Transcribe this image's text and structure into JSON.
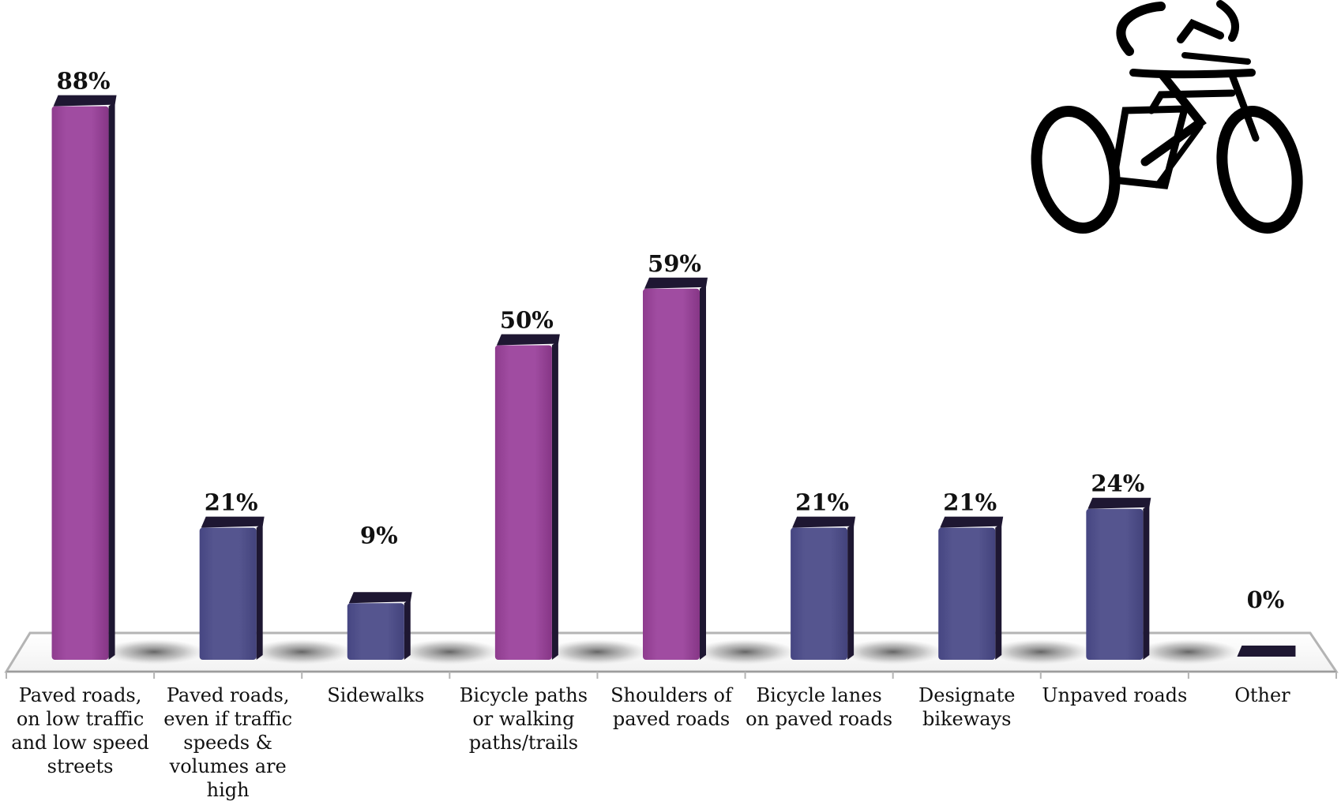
{
  "chart_data": {
    "type": "bar",
    "title": "",
    "xlabel": "",
    "ylabel": "",
    "ylim": [
      0,
      100
    ],
    "grid": false,
    "categories": [
      "Paved roads, on low traffic and low speed streets",
      "Paved roads, even if traffic speeds & volumes are high",
      "Sidewalks",
      "Bicycle paths or walking paths/trails",
      "Shoulders of paved roads",
      "Bicycle lanes on paved roads",
      "Designate bikeways",
      "Unpaved roads",
      "Other"
    ],
    "values": [
      88,
      21,
      9,
      50,
      59,
      21,
      21,
      24,
      0
    ],
    "value_labels": [
      "88%",
      "21%",
      "9%",
      "50%",
      "59%",
      "21%",
      "21%",
      "24%",
      "0%"
    ],
    "highlighted": [
      true,
      false,
      false,
      true,
      true,
      false,
      false,
      false,
      false
    ],
    "colors": {
      "highlight": "#9b479b",
      "normal": "#4f4f8a",
      "top_dark": "#1e1732",
      "floor_line": "#b4b4b4"
    },
    "decoration": "cyclist-icon"
  }
}
